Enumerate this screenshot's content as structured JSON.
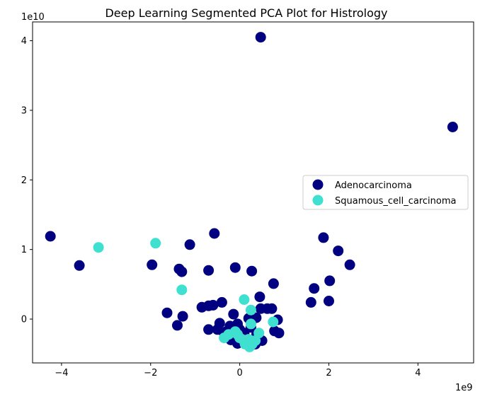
{
  "chart_data": {
    "type": "scatter",
    "title": "Deep Learning Segmented PCA Plot for Histrology",
    "xlabel": "",
    "ylabel": "",
    "x_multiplier_label": "1e9",
    "y_multiplier_label": "1e10",
    "xlim": [
      -4.65,
      5.25
    ],
    "ylim": [
      -0.63,
      4.27
    ],
    "x_ticks": [
      -4,
      -2,
      0,
      2,
      4
    ],
    "y_ticks": [
      0,
      1,
      2,
      3,
      4
    ],
    "x_tick_labels": [
      "−4",
      "−2",
      "0",
      "2",
      "4"
    ],
    "y_tick_labels": [
      "0",
      "1",
      "2",
      "3",
      "4"
    ],
    "grid": false,
    "legend_position": "center-right",
    "colors": {
      "Adenocarcinoma": "#000080",
      "Squamous_cell_carcinoma": "#40e0d0"
    },
    "series": [
      {
        "name": "Adenocarcinoma",
        "color": "#000080",
        "points": [
          [
            0.47,
            4.05
          ],
          [
            4.78,
            2.76
          ],
          [
            -4.25,
            1.19
          ],
          [
            -3.6,
            0.77
          ],
          [
            -0.57,
            1.23
          ],
          [
            -1.12,
            1.07
          ],
          [
            -1.97,
            0.78
          ],
          [
            -1.36,
            0.72
          ],
          [
            -1.3,
            0.68
          ],
          [
            -0.7,
            0.7
          ],
          [
            -0.1,
            0.74
          ],
          [
            0.27,
            0.69
          ],
          [
            0.76,
            0.51
          ],
          [
            1.88,
            1.17
          ],
          [
            2.21,
            0.98
          ],
          [
            2.47,
            0.78
          ],
          [
            1.67,
            0.44
          ],
          [
            2.02,
            0.55
          ],
          [
            0.45,
            0.32
          ],
          [
            0.47,
            0.15
          ],
          [
            0.62,
            0.15
          ],
          [
            0.72,
            0.15
          ],
          [
            -0.4,
            0.24
          ],
          [
            -0.6,
            0.2
          ],
          [
            -0.7,
            0.19
          ],
          [
            -0.85,
            0.17
          ],
          [
            -1.28,
            0.04
          ],
          [
            -1.63,
            0.09
          ],
          [
            -1.4,
            -0.09
          ],
          [
            -0.14,
            0.07
          ],
          [
            0.37,
            0.02
          ],
          [
            0.85,
            -0.01
          ],
          [
            -0.7,
            -0.15
          ],
          [
            -0.45,
            -0.06
          ],
          [
            -0.22,
            -0.1
          ],
          [
            -0.05,
            -0.07
          ],
          [
            0.2,
            0.01
          ],
          [
            0.78,
            -0.17
          ],
          [
            0.88,
            -0.2
          ],
          [
            1.6,
            0.24
          ],
          [
            2.0,
            0.26
          ],
          [
            -0.5,
            -0.15
          ],
          [
            -0.35,
            -0.2
          ],
          [
            -0.1,
            -0.25
          ],
          [
            0.1,
            -0.2
          ],
          [
            0.25,
            -0.12
          ],
          [
            0.38,
            -0.22
          ],
          [
            0.5,
            -0.31
          ],
          [
            0.05,
            -0.32
          ],
          [
            0.18,
            -0.35
          ],
          [
            0.3,
            -0.3
          ],
          [
            -0.2,
            -0.3
          ],
          [
            -0.3,
            -0.18
          ],
          [
            0.0,
            -0.15
          ],
          [
            0.12,
            -0.28
          ],
          [
            0.22,
            -0.38
          ],
          [
            0.35,
            -0.36
          ],
          [
            -0.05,
            -0.35
          ]
        ]
      },
      {
        "name": "Squamous_cell_carcinoma",
        "color": "#40e0d0",
        "points": [
          [
            -3.17,
            1.03
          ],
          [
            -1.89,
            1.09
          ],
          [
            -1.3,
            0.42
          ],
          [
            0.1,
            0.28
          ],
          [
            0.25,
            0.13
          ],
          [
            0.25,
            -0.07
          ],
          [
            0.75,
            -0.04
          ],
          [
            0.43,
            -0.2
          ],
          [
            -0.35,
            -0.27
          ],
          [
            -0.25,
            -0.22
          ],
          [
            -0.1,
            -0.18
          ],
          [
            0.0,
            -0.27
          ],
          [
            0.08,
            -0.3
          ],
          [
            0.15,
            -0.35
          ],
          [
            0.22,
            -0.4
          ],
          [
            0.28,
            -0.36
          ],
          [
            0.35,
            -0.31
          ],
          [
            0.2,
            -0.29
          ],
          [
            0.12,
            -0.36
          ],
          [
            -0.05,
            -0.22
          ]
        ]
      }
    ]
  }
}
